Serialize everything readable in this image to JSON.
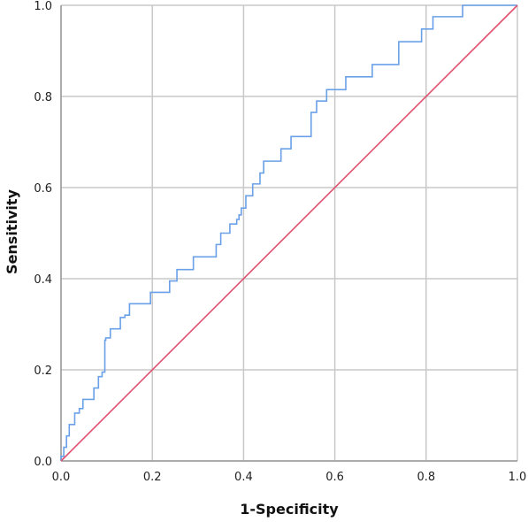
{
  "chart_data": {
    "type": "line",
    "title": "",
    "xlabel": "1-Specificity",
    "ylabel": "Sensitivity",
    "xlim": [
      0,
      1
    ],
    "ylim": [
      0,
      1
    ],
    "x_ticks": [
      "0.0",
      "0.2",
      "0.4",
      "0.6",
      "0.8",
      "1.0"
    ],
    "y_ticks": [
      "0.0",
      "0.2",
      "0.4",
      "0.6",
      "0.8",
      "1.0"
    ],
    "grid": true,
    "legend": "none",
    "series": [
      {
        "color": "#6aa0e8",
        "x": [
          0.0,
          0.0,
          0.006,
          0.006,
          0.012,
          0.012,
          0.018,
          0.018,
          0.03,
          0.03,
          0.04,
          0.04,
          0.048,
          0.048,
          0.056,
          0.056,
          0.072,
          0.072,
          0.082,
          0.082,
          0.09,
          0.09,
          0.096,
          0.096,
          0.098,
          0.098,
          0.108,
          0.108,
          0.13,
          0.13,
          0.14,
          0.14,
          0.15,
          0.15,
          0.175,
          0.175,
          0.196,
          0.196,
          0.225,
          0.225,
          0.238,
          0.238,
          0.254,
          0.254,
          0.29,
          0.29,
          0.34,
          0.34,
          0.35,
          0.35,
          0.37,
          0.37,
          0.385,
          0.385,
          0.39,
          0.39,
          0.395,
          0.395,
          0.398,
          0.398,
          0.405,
          0.405,
          0.42,
          0.42,
          0.436,
          0.436,
          0.444,
          0.444,
          0.46,
          0.46,
          0.482,
          0.482,
          0.504,
          0.504,
          0.518,
          0.518,
          0.548,
          0.548,
          0.56,
          0.56,
          0.582,
          0.582,
          0.602,
          0.602,
          0.624,
          0.624,
          0.652,
          0.652,
          0.682,
          0.682,
          0.74,
          0.74,
          0.79,
          0.79,
          0.805,
          0.805,
          0.815,
          0.815,
          0.88,
          0.88,
          0.935,
          0.935,
          1.0
        ],
        "y": [
          0.0,
          0.01,
          0.01,
          0.03,
          0.03,
          0.055,
          0.055,
          0.08,
          0.08,
          0.105,
          0.105,
          0.115,
          0.115,
          0.135,
          0.135,
          0.135,
          0.135,
          0.16,
          0.16,
          0.185,
          0.185,
          0.195,
          0.195,
          0.265,
          0.265,
          0.27,
          0.27,
          0.29,
          0.29,
          0.315,
          0.315,
          0.32,
          0.32,
          0.345,
          0.345,
          0.345,
          0.345,
          0.37,
          0.37,
          0.37,
          0.37,
          0.395,
          0.395,
          0.42,
          0.42,
          0.448,
          0.448,
          0.475,
          0.475,
          0.5,
          0.5,
          0.52,
          0.52,
          0.53,
          0.53,
          0.54,
          0.54,
          0.555,
          0.555,
          0.555,
          0.555,
          0.582,
          0.582,
          0.608,
          0.608,
          0.632,
          0.632,
          0.658,
          0.658,
          0.658,
          0.658,
          0.685,
          0.685,
          0.712,
          0.712,
          0.712,
          0.712,
          0.765,
          0.765,
          0.79,
          0.79,
          0.815,
          0.815,
          0.815,
          0.815,
          0.843,
          0.843,
          0.843,
          0.843,
          0.87,
          0.87,
          0.92,
          0.92,
          0.948,
          0.948,
          0.948,
          0.948,
          0.975,
          0.975,
          1.0,
          1.0,
          1.0,
          1.0
        ]
      },
      {
        "color": "#e0506e",
        "x": [
          0,
          1
        ],
        "y": [
          0,
          1
        ]
      }
    ]
  }
}
